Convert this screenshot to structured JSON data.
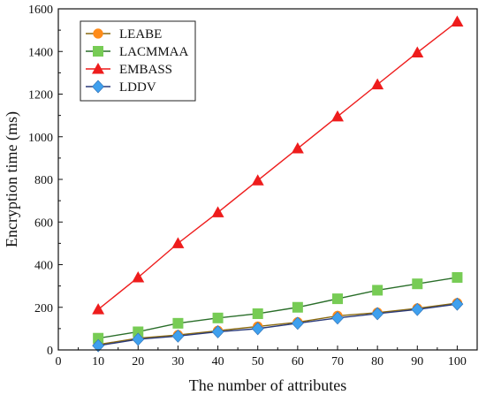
{
  "chart_data": {
    "type": "line",
    "title": "",
    "xlabel": "The number of attributes",
    "ylabel": "Encryption time (ms)",
    "x": [
      10,
      20,
      30,
      40,
      50,
      60,
      70,
      80,
      90,
      100
    ],
    "xlim": [
      0,
      105
    ],
    "ylim": [
      0,
      1600
    ],
    "xticks": [
      0,
      10,
      20,
      30,
      40,
      50,
      60,
      70,
      80,
      90,
      100
    ],
    "yticks": [
      0,
      200,
      400,
      600,
      800,
      1000,
      1200,
      1400,
      1600
    ],
    "grid": false,
    "legend_position": "top-left",
    "series": [
      {
        "name": "LEABE",
        "color": "#ff8c1a",
        "line_color": "#8a6a10",
        "marker": "circle",
        "values": [
          25,
          55,
          70,
          90,
          110,
          130,
          160,
          175,
          195,
          220
        ]
      },
      {
        "name": "LACMMAA",
        "color": "#77cc55",
        "line_color": "#2a6e2a",
        "marker": "square",
        "values": [
          55,
          85,
          125,
          150,
          170,
          200,
          240,
          280,
          310,
          340
        ]
      },
      {
        "name": "EMBASS",
        "color": "#ee1c1c",
        "line_color": "#ee1c1c",
        "marker": "triangle",
        "values": [
          190,
          340,
          500,
          645,
          795,
          945,
          1095,
          1245,
          1395,
          1540
        ]
      },
      {
        "name": "LDDV",
        "color": "#3fa0ee",
        "line_color": "#2a3a7a",
        "marker": "diamond",
        "values": [
          20,
          50,
          65,
          85,
          100,
          125,
          150,
          170,
          190,
          215
        ]
      }
    ]
  }
}
